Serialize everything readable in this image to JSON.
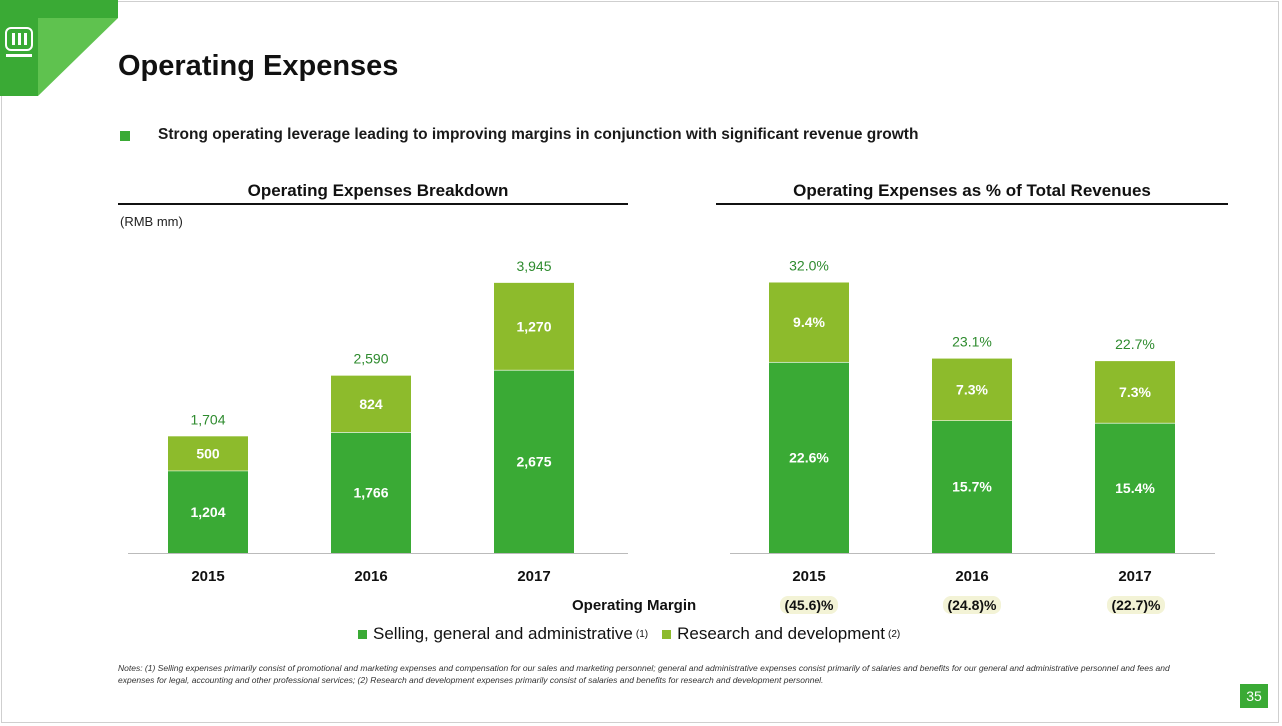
{
  "slide": {
    "title": "Operating Expenses",
    "subtitle": "Strong operating leverage leading to improving margins in conjunction with significant revenue growth",
    "page_number": "35",
    "brand_color": "#3aaa35",
    "logo_icon": "iqiyi-logo-icon"
  },
  "legend": {
    "sga_label": "Selling, general and administrative",
    "sga_note": "(1)",
    "rd_label": "Research and development",
    "rd_note": "(2)"
  },
  "operating_margin": {
    "label": "Operating Margin",
    "values": [
      "(45.6)%",
      "(24.8)%",
      "(22.7)%"
    ]
  },
  "notes": "Notes: (1) Selling expenses primarily consist of promotional and marketing expenses and compensation for our sales and marketing personnel; general and administrative expenses consist primarily of salaries and benefits for our general and administrative personnel and fees and expenses for legal, accounting and other professional services; (2) Research and development expenses primarily consist of salaries and benefits for research and development personnel.",
  "chart_data": [
    {
      "type": "bar",
      "stacked": true,
      "title": "Operating Expenses Breakdown",
      "unit_label": "(RMB mm)",
      "categories": [
        "2015",
        "2016",
        "2017"
      ],
      "series": [
        {
          "name": "Selling, general and administrative",
          "color": "#3aaa35",
          "values": [
            1204,
            1766,
            2675
          ],
          "labels": [
            "1,204",
            "1,766",
            "2,675"
          ]
        },
        {
          "name": "Research and development",
          "color": "#8dbb2c",
          "values": [
            500,
            824,
            1270
          ],
          "labels": [
            "500",
            "824",
            "1,270"
          ]
        }
      ],
      "totals": [
        "1,704",
        "2,590",
        "3,945"
      ],
      "ylim": [
        0,
        4600
      ]
    },
    {
      "type": "bar",
      "stacked": true,
      "title": "Operating Expenses as % of Total Revenues",
      "categories": [
        "2015",
        "2016",
        "2017"
      ],
      "series": [
        {
          "name": "Selling, general and administrative",
          "color": "#3aaa35",
          "values": [
            22.6,
            15.7,
            15.4
          ],
          "labels": [
            "22.6%",
            "15.7%",
            "15.4%"
          ]
        },
        {
          "name": "Research and development",
          "color": "#8dbb2c",
          "values": [
            9.4,
            7.3,
            7.3
          ],
          "labels": [
            "9.4%",
            "7.3%",
            "7.3%"
          ]
        }
      ],
      "totals": [
        "32.0%",
        "23.1%",
        "22.7%"
      ],
      "ylim": [
        0,
        37.5
      ]
    }
  ]
}
